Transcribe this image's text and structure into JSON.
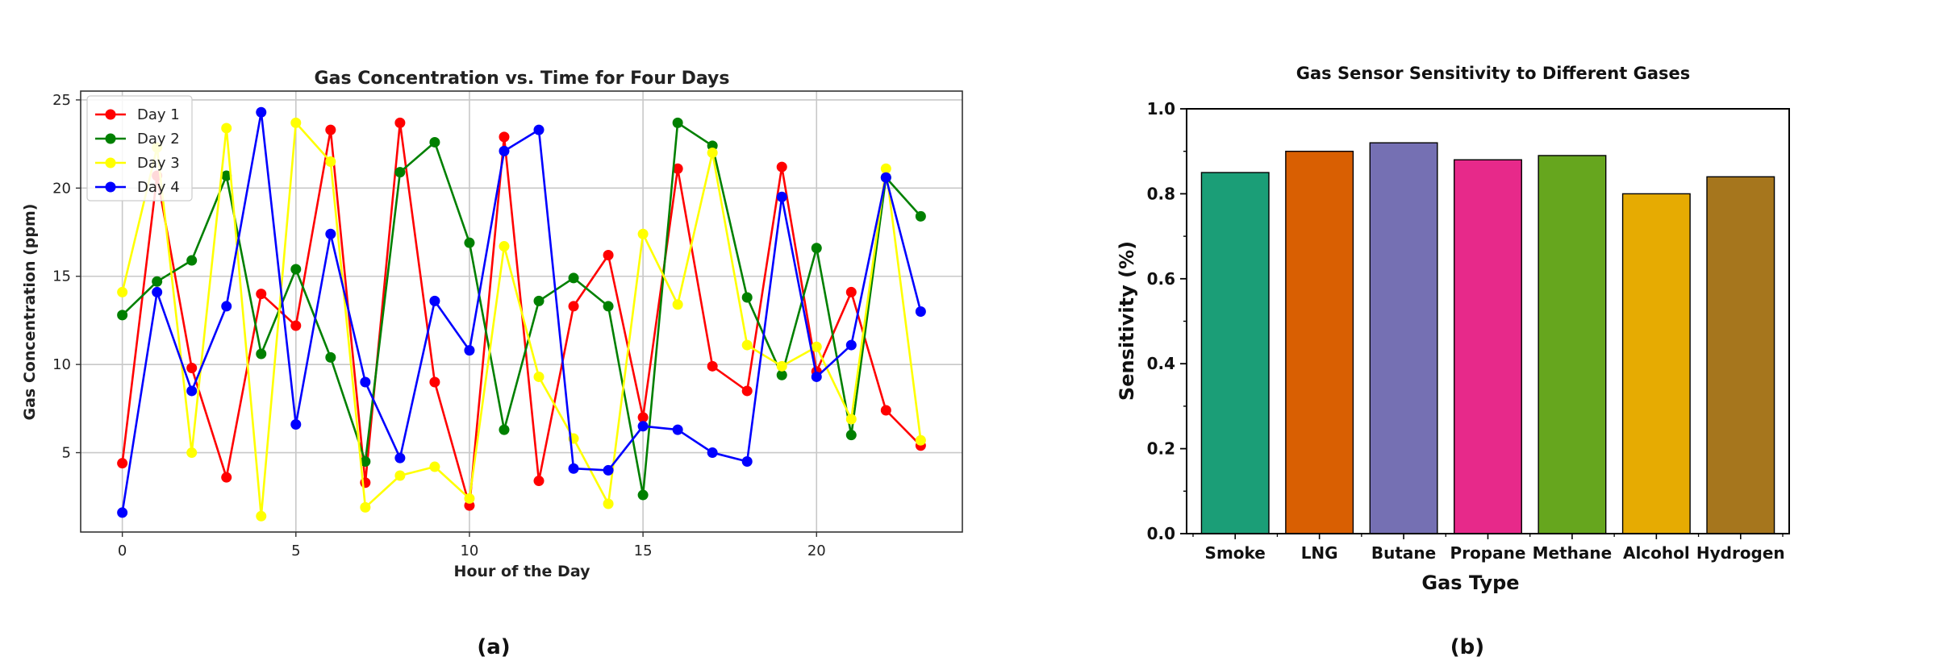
{
  "chart_data": [
    {
      "type": "line",
      "title": "Gas Concentration vs. Time for Four Days",
      "xlabel": "Hour of the Day",
      "ylabel": "Gas Concentration (ppm)",
      "xlim": [
        -1.2,
        24.2
      ],
      "ylim": [
        0.5,
        25.5
      ],
      "xticks": [
        0,
        5,
        10,
        15,
        20
      ],
      "yticks": [
        5,
        10,
        15,
        20,
        25
      ],
      "grid": true,
      "legend_position": "top-left",
      "panel_label": "(a)",
      "x": [
        0,
        1,
        2,
        3,
        4,
        5,
        6,
        7,
        8,
        9,
        10,
        11,
        12,
        13,
        14,
        15,
        16,
        17,
        18,
        19,
        20,
        21,
        22,
        23
      ],
      "series": [
        {
          "name": "Day 1",
          "color": "#ff0000",
          "values": [
            4.4,
            20.7,
            9.8,
            3.6,
            14.0,
            12.2,
            23.3,
            3.3,
            23.7,
            9.0,
            2.0,
            22.9,
            3.4,
            13.3,
            16.2,
            7.0,
            21.1,
            9.9,
            8.5,
            21.2,
            9.6,
            14.1,
            7.4,
            5.4
          ]
        },
        {
          "name": "Day 2",
          "color": "#008000",
          "values": [
            12.8,
            14.7,
            15.9,
            20.7,
            10.6,
            15.4,
            10.4,
            4.5,
            20.9,
            22.6,
            16.9,
            6.3,
            13.6,
            14.9,
            13.3,
            2.6,
            23.7,
            22.4,
            13.8,
            9.4,
            16.6,
            6.0,
            20.6,
            18.4
          ]
        },
        {
          "name": "Day 3",
          "color": "#ffff00",
          "values": [
            14.1,
            22.3,
            5.0,
            23.4,
            1.4,
            23.7,
            21.5,
            1.9,
            3.7,
            4.2,
            2.4,
            16.7,
            9.3,
            5.8,
            2.1,
            17.4,
            13.4,
            22.0,
            11.1,
            9.9,
            11.0,
            6.9,
            21.1,
            5.7
          ]
        },
        {
          "name": "Day 4",
          "color": "#0000ff",
          "values": [
            1.6,
            14.1,
            8.5,
            13.3,
            24.3,
            6.6,
            17.4,
            9.0,
            4.7,
            13.6,
            10.8,
            22.1,
            23.3,
            4.1,
            4.0,
            6.5,
            6.3,
            5.0,
            4.5,
            19.5,
            9.3,
            11.1,
            20.6,
            13.0
          ]
        }
      ]
    },
    {
      "type": "bar",
      "title": "Gas Sensor Sensitivity to Different Gases",
      "xlabel": "Gas Type",
      "ylabel": "Sensitivity (%)",
      "ylim": [
        0,
        1.0
      ],
      "yticks": [
        "0.0",
        "0.2",
        "0.4",
        "0.6",
        "0.8",
        "1.0"
      ],
      "grid": false,
      "panel_label": "(b)",
      "categories": [
        "Smoke",
        "LNG",
        "Butane",
        "Propane",
        "Methane",
        "Alcohol",
        "Hydrogen"
      ],
      "values": [
        0.85,
        0.9,
        0.92,
        0.88,
        0.89,
        0.8,
        0.84
      ],
      "colors": [
        "#1b9e77",
        "#d95f02",
        "#7570b3",
        "#e7298a",
        "#66a61e",
        "#e6ab02",
        "#a6761d"
      ]
    }
  ]
}
